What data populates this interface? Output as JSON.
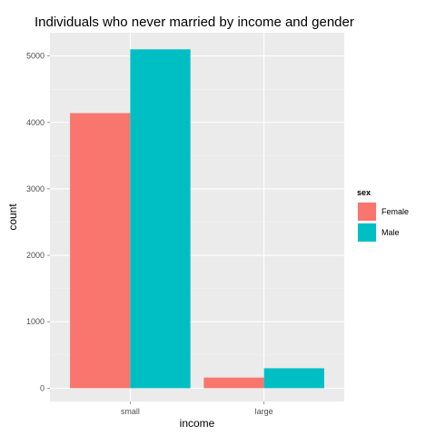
{
  "chart_data": {
    "type": "bar",
    "title": "Individuals who never married by income and gender",
    "xlabel": "income",
    "ylabel": "count",
    "categories": [
      "small",
      "large"
    ],
    "series": [
      {
        "name": "Female",
        "values": [
          4140,
          160
        ],
        "color": "#F8766D"
      },
      {
        "name": "Male",
        "values": [
          5100,
          300
        ],
        "color": "#00BFC4"
      }
    ],
    "yticks": [
      0,
      1000,
      2000,
      3000,
      4000,
      5000
    ],
    "ylim": [
      -200,
      5350
    ],
    "legend": {
      "title": "sex",
      "placement": "right"
    },
    "grid": true,
    "panel_background": "#EBEBEB",
    "gridline_color": "#FFFFFF"
  }
}
